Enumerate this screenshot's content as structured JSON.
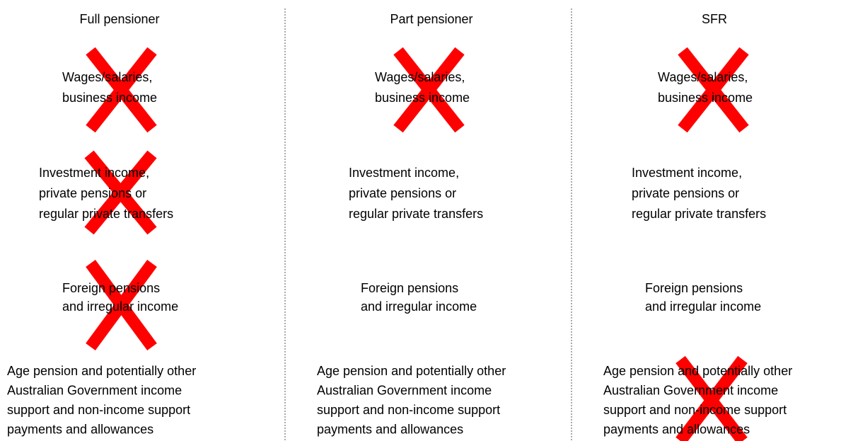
{
  "columns": [
    {
      "header": "Full pensioner",
      "items": [
        [
          "Wages/salaries,",
          "business income"
        ],
        [
          "Investment income,",
          "private pensions or",
          "regular private transfers"
        ],
        [
          "Foreign pensions",
          "and irregular income"
        ],
        [
          "Age pension and potentially other",
          "Australian Government income",
          "support and non-income support",
          "payments and allowances"
        ]
      ]
    },
    {
      "header": "Part pensioner",
      "items": [
        [
          "Wages/salaries,",
          "business income"
        ],
        [
          "Investment income,",
          "private pensions or",
          "regular private transfers"
        ],
        [
          "Foreign pensions",
          "and irregular income"
        ],
        [
          "Age pension and potentially other",
          "Australian Government income",
          "support and non-income support",
          "payments and allowances"
        ]
      ]
    },
    {
      "header": "SFR",
      "items": [
        [
          "Wages/salaries,",
          "business income"
        ],
        [
          "Investment income,",
          "private pensions or",
          "regular private transfers"
        ],
        [
          "Foreign pensions",
          "and irregular income"
        ],
        [
          "Age pension and potentially other",
          "Australian Government income",
          "support and non-income support",
          "payments and allowances"
        ]
      ]
    }
  ]
}
